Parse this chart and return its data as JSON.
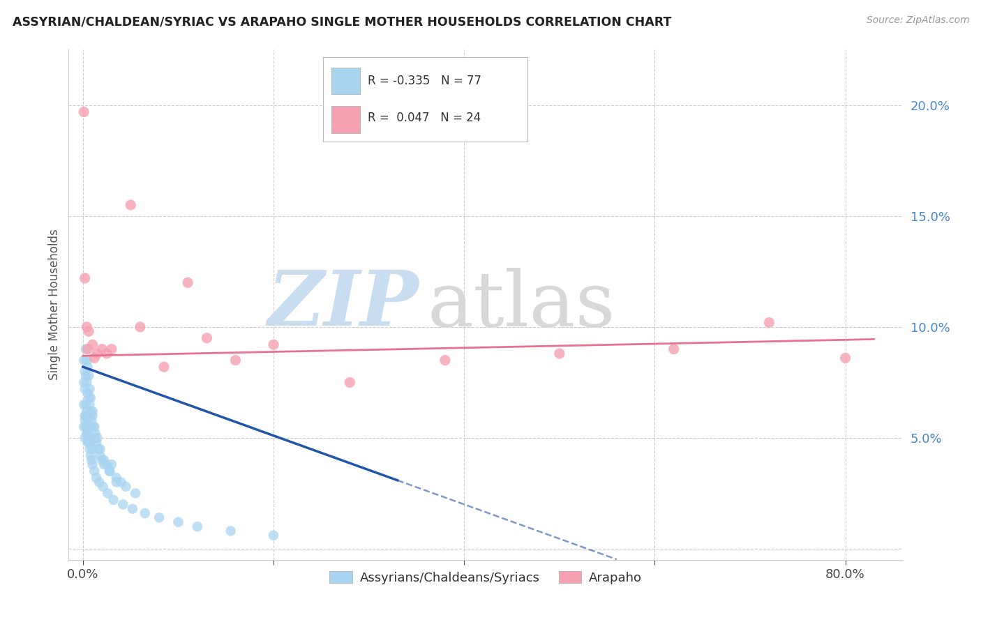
{
  "title": "ASSYRIAN/CHALDEAN/SYRIAC VS ARAPAHO SINGLE MOTHER HOUSEHOLDS CORRELATION CHART",
  "source": "Source: ZipAtlas.com",
  "ylabel": "Single Mother Households",
  "color_blue": "#a8d4f0",
  "color_pink": "#f5a0b0",
  "color_line_blue": "#2255aa",
  "color_line_pink": "#e87090",
  "watermark_zip": "ZIP",
  "watermark_atlas": "atlas",
  "legend_text_blue": "R = -0.335   N = 77",
  "legend_text_pink": "R =  0.047   N = 24",
  "bottom_legend_blue": "Assyrians/Chaldeans/Syriacs",
  "bottom_legend_pink": "Arapaho",
  "xlim": [
    -0.015,
    0.86
  ],
  "ylim": [
    -0.005,
    0.225
  ],
  "blue_slope": -0.155,
  "blue_intercept": 0.082,
  "blue_line_x_start": 0.0,
  "blue_line_x_solid_end": 0.33,
  "blue_line_x_dash_end": 0.56,
  "pink_slope": 0.009,
  "pink_intercept": 0.087,
  "pink_line_x_start": 0.0,
  "pink_line_x_end": 0.83,
  "blue_x": [
    0.001,
    0.001,
    0.001,
    0.002,
    0.002,
    0.002,
    0.002,
    0.003,
    0.003,
    0.003,
    0.004,
    0.004,
    0.004,
    0.005,
    0.005,
    0.005,
    0.006,
    0.006,
    0.007,
    0.007,
    0.008,
    0.008,
    0.009,
    0.01,
    0.01,
    0.011,
    0.012,
    0.013,
    0.014,
    0.016,
    0.018,
    0.02,
    0.022,
    0.025,
    0.028,
    0.03,
    0.035,
    0.04,
    0.003,
    0.004,
    0.005,
    0.006,
    0.007,
    0.008,
    0.01,
    0.012,
    0.015,
    0.018,
    0.022,
    0.028,
    0.035,
    0.045,
    0.055,
    0.001,
    0.002,
    0.003,
    0.004,
    0.005,
    0.006,
    0.007,
    0.008,
    0.009,
    0.01,
    0.012,
    0.014,
    0.017,
    0.021,
    0.026,
    0.032,
    0.042,
    0.052,
    0.065,
    0.08,
    0.1,
    0.12,
    0.155,
    0.2
  ],
  "blue_y": [
    0.085,
    0.075,
    0.065,
    0.08,
    0.072,
    0.06,
    0.05,
    0.078,
    0.065,
    0.055,
    0.075,
    0.062,
    0.052,
    0.07,
    0.058,
    0.048,
    0.068,
    0.055,
    0.065,
    0.05,
    0.062,
    0.048,
    0.058,
    0.06,
    0.045,
    0.055,
    0.05,
    0.052,
    0.048,
    0.045,
    0.042,
    0.04,
    0.038,
    0.038,
    0.035,
    0.038,
    0.032,
    0.03,
    0.09,
    0.085,
    0.082,
    0.078,
    0.072,
    0.068,
    0.062,
    0.055,
    0.05,
    0.045,
    0.04,
    0.035,
    0.03,
    0.028,
    0.025,
    0.055,
    0.058,
    0.06,
    0.055,
    0.052,
    0.048,
    0.045,
    0.042,
    0.04,
    0.038,
    0.035,
    0.032,
    0.03,
    0.028,
    0.025,
    0.022,
    0.02,
    0.018,
    0.016,
    0.014,
    0.012,
    0.01,
    0.008,
    0.006
  ],
  "pink_x": [
    0.001,
    0.002,
    0.004,
    0.006,
    0.01,
    0.015,
    0.02,
    0.03,
    0.05,
    0.085,
    0.13,
    0.2,
    0.28,
    0.38,
    0.5,
    0.62,
    0.72,
    0.8,
    0.005,
    0.012,
    0.025,
    0.06,
    0.11,
    0.16
  ],
  "pink_y": [
    0.197,
    0.122,
    0.1,
    0.098,
    0.092,
    0.088,
    0.09,
    0.09,
    0.155,
    0.082,
    0.095,
    0.092,
    0.075,
    0.085,
    0.088,
    0.09,
    0.102,
    0.086,
    0.09,
    0.086,
    0.088,
    0.1,
    0.12,
    0.085
  ]
}
